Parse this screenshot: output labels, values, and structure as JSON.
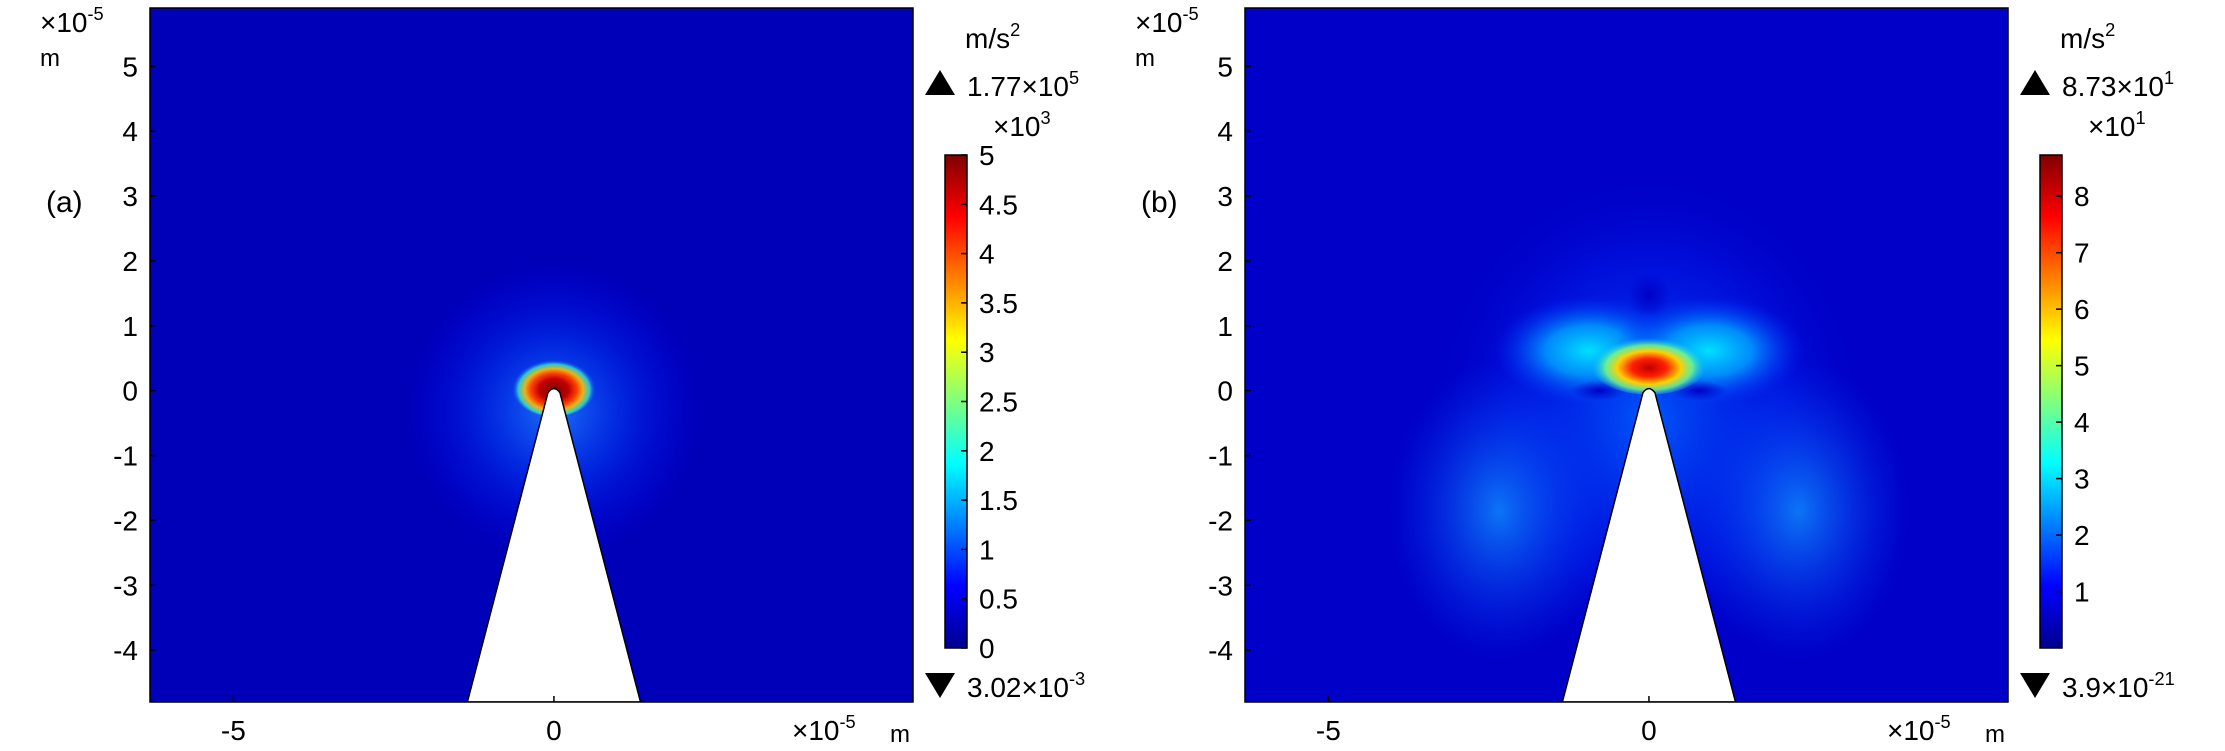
{
  "chart_data": [
    {
      "type": "heatmap",
      "panel_label": "(a)",
      "x_multiplier": "×10",
      "x_exponent": "-5",
      "x_unit": "m",
      "y_multiplier": "×10",
      "y_exponent": "-5",
      "y_unit": "m",
      "x_range": [
        -6.3,
        5.6
      ],
      "y_range": [
        -4.8,
        5.9
      ],
      "x_ticks": [
        -5,
        0
      ],
      "y_ticks": [
        5,
        4,
        3,
        2,
        1,
        0,
        -1,
        -2,
        -3,
        -4
      ],
      "colorbar": {
        "unit_base": "m/s",
        "unit_exp": "2",
        "max_label": "1.77×10",
        "max_exp": "5",
        "scale_label": "×10",
        "scale_exp": "3",
        "ticks": [
          "5",
          "4.5",
          "4",
          "3.5",
          "3",
          "2.5",
          "2",
          "1.5",
          "1",
          "0.5",
          "0"
        ],
        "tick_values": [
          5,
          4.5,
          4,
          3.5,
          3,
          2.5,
          2,
          1.5,
          1,
          0.5,
          0
        ],
        "range": [
          0,
          5
        ],
        "min_label": "3.02×10",
        "min_exp": "-3"
      },
      "features": {
        "tip_x": 0,
        "tip_y": 0,
        "cone_base_halfwidth": 1.35,
        "hotspot": "concentrated at tip"
      },
      "colormap": "jet"
    },
    {
      "type": "heatmap",
      "panel_label": "(b)",
      "x_multiplier": "×10",
      "x_exponent": "-5",
      "x_unit": "m",
      "y_multiplier": "×10",
      "y_exponent": "-5",
      "y_unit": "m",
      "x_range": [
        -6.3,
        5.6
      ],
      "y_range": [
        -4.8,
        5.9
      ],
      "x_ticks": [
        -5,
        0
      ],
      "y_ticks": [
        5,
        4,
        3,
        2,
        1,
        0,
        -1,
        -2,
        -3,
        -4
      ],
      "colorbar": {
        "unit_base": "m/s",
        "unit_exp": "2",
        "max_label": "8.73×10",
        "max_exp": "1",
        "scale_label": "×10",
        "scale_exp": "1",
        "ticks": [
          "8",
          "7",
          "6",
          "5",
          "4",
          "3",
          "2",
          "1"
        ],
        "tick_values": [
          8,
          7,
          6,
          5,
          4,
          3,
          2,
          1
        ],
        "range": [
          0,
          8.73
        ],
        "min_label": "3.9×10",
        "min_exp": "-21"
      },
      "features": {
        "tip_x": 0,
        "tip_y": 0,
        "cone_base_halfwidth": 1.35,
        "hotspot": "butterfly lobes above tip"
      },
      "colormap": "jet"
    }
  ]
}
